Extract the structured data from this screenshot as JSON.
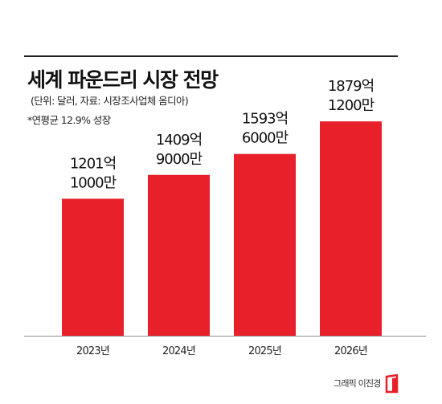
{
  "title": "세계 파운드리 시장 전망",
  "subtitle": "(단위: 달러, 자료: 시장조사업체 옴디아)",
  "note": "*연평균 12.9% 성장",
  "credit": "그래픽 이진경",
  "colors": {
    "bar": "#e8202a",
    "axis": "#8c8c8c",
    "rule": "#222222",
    "logo": "#e8202a"
  },
  "icons": {
    "logo": "book-logo-icon"
  },
  "chart_data": {
    "type": "bar",
    "categories": [
      "2023년",
      "2024년",
      "2025년",
      "2026년"
    ],
    "values": [
      1201.1,
      1409.9,
      1593.6,
      1879.12
    ],
    "value_unit": "억 달러",
    "data_labels": [
      [
        "1201억",
        "1000만"
      ],
      [
        "1409억",
        "9000만"
      ],
      [
        "1593억",
        "6000만"
      ],
      [
        "1879억",
        "1200만"
      ]
    ],
    "title": "세계 파운드리 시장 전망",
    "xlabel": "",
    "ylabel": "",
    "ylim": [
      0,
      2380
    ],
    "grid": false,
    "legend": "none"
  }
}
